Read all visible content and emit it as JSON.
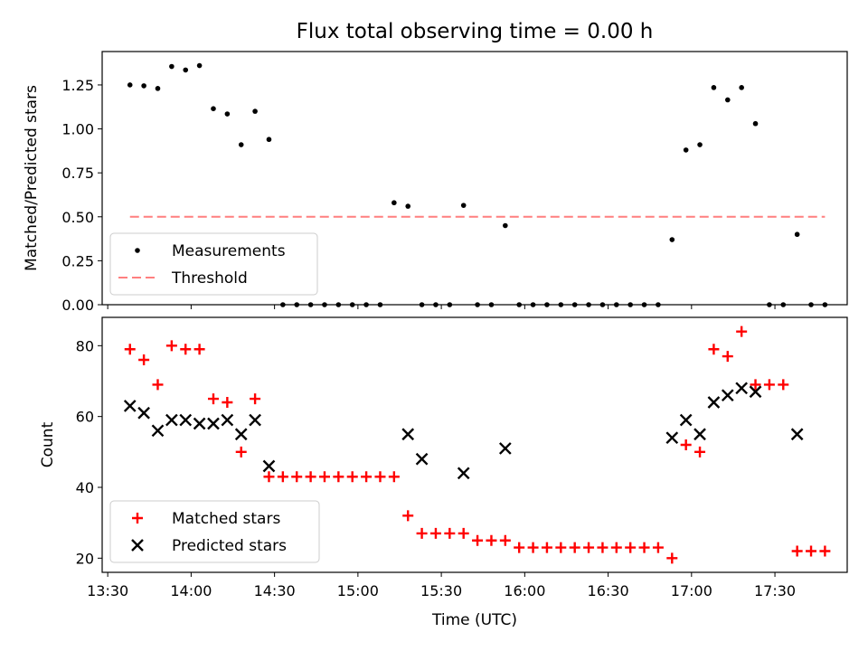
{
  "chart_data": [
    {
      "type": "scatter",
      "title": "Flux total observing time = 0.00 h",
      "xlabel": "",
      "ylabel": "Matched/Predicted stars",
      "xlim": [
        "13:28",
        "17:56"
      ],
      "ylim": [
        0,
        1.44
      ],
      "yticks": [
        "0.00",
        "0.25",
        "0.50",
        "0.75",
        "1.00",
        "1.25"
      ],
      "legend_position": "lower-left",
      "series": [
        {
          "name": "Measurements",
          "marker": "dot",
          "color": "#000000",
          "points": [
            [
              "13:38",
              1.25
            ],
            [
              "13:43",
              1.245
            ],
            [
              "13:48",
              1.23
            ],
            [
              "13:53",
              1.355
            ],
            [
              "13:58",
              1.335
            ],
            [
              "14:03",
              1.36
            ],
            [
              "14:08",
              1.115
            ],
            [
              "14:13",
              1.085
            ],
            [
              "14:18",
              0.91
            ],
            [
              "14:23",
              1.1
            ],
            [
              "14:28",
              0.94
            ],
            [
              "14:33",
              0
            ],
            [
              "14:38",
              0
            ],
            [
              "14:43",
              0
            ],
            [
              "14:48",
              0
            ],
            [
              "14:53",
              0
            ],
            [
              "14:58",
              0
            ],
            [
              "15:03",
              0
            ],
            [
              "15:08",
              0
            ],
            [
              "15:13",
              0.58
            ],
            [
              "15:18",
              0.56
            ],
            [
              "15:23",
              0
            ],
            [
              "15:28",
              0
            ],
            [
              "15:33",
              0
            ],
            [
              "15:38",
              0.565
            ],
            [
              "15:43",
              0
            ],
            [
              "15:48",
              0
            ],
            [
              "15:53",
              0.45
            ],
            [
              "15:58",
              0
            ],
            [
              "16:03",
              0
            ],
            [
              "16:08",
              0
            ],
            [
              "16:13",
              0
            ],
            [
              "16:18",
              0
            ],
            [
              "16:23",
              0
            ],
            [
              "16:28",
              0
            ],
            [
              "16:33",
              0
            ],
            [
              "16:38",
              0
            ],
            [
              "16:43",
              0
            ],
            [
              "16:48",
              0
            ],
            [
              "16:53",
              0.37
            ],
            [
              "16:58",
              0.88
            ],
            [
              "17:03",
              0.91
            ],
            [
              "17:08",
              1.235
            ],
            [
              "17:13",
              1.165
            ],
            [
              "17:18",
              1.235
            ],
            [
              "17:23",
              1.03
            ],
            [
              "17:28",
              0
            ],
            [
              "17:33",
              0
            ],
            [
              "17:38",
              0.4
            ],
            [
              "17:43",
              0
            ],
            [
              "17:48",
              0
            ]
          ]
        },
        {
          "name": "Threshold",
          "style": "dashed-line",
          "color": "#ff7f7f",
          "points": [
            [
              "13:38",
              0.5
            ],
            [
              "17:48",
              0.5
            ]
          ]
        }
      ]
    },
    {
      "type": "scatter",
      "title": "",
      "xlabel": "Time (UTC)",
      "ylabel": "Count",
      "xlim": [
        "13:28",
        "17:56"
      ],
      "ylim": [
        16,
        88
      ],
      "yticks": [
        "20",
        "40",
        "60",
        "80"
      ],
      "xticks": [
        "13:30",
        "14:00",
        "14:30",
        "15:00",
        "15:30",
        "16:00",
        "16:30",
        "17:00",
        "17:30"
      ],
      "legend_position": "lower-left",
      "series": [
        {
          "name": "Matched stars",
          "marker": "plus",
          "color": "#ff0000",
          "points": [
            [
              "13:38",
              79
            ],
            [
              "13:43",
              76
            ],
            [
              "13:48",
              69
            ],
            [
              "13:53",
              80
            ],
            [
              "13:58",
              79
            ],
            [
              "14:03",
              79
            ],
            [
              "14:08",
              65
            ],
            [
              "14:13",
              64
            ],
            [
              "14:18",
              50
            ],
            [
              "14:23",
              65
            ],
            [
              "14:28",
              43
            ],
            [
              "14:33",
              43
            ],
            [
              "14:38",
              43
            ],
            [
              "14:43",
              43
            ],
            [
              "14:48",
              43
            ],
            [
              "14:53",
              43
            ],
            [
              "14:58",
              43
            ],
            [
              "15:03",
              43
            ],
            [
              "15:08",
              43
            ],
            [
              "15:13",
              43
            ],
            [
              "15:18",
              32
            ],
            [
              "15:23",
              27
            ],
            [
              "15:28",
              27
            ],
            [
              "15:33",
              27
            ],
            [
              "15:38",
              27
            ],
            [
              "15:43",
              25
            ],
            [
              "15:48",
              25
            ],
            [
              "15:53",
              25
            ],
            [
              "15:58",
              23
            ],
            [
              "16:03",
              23
            ],
            [
              "16:08",
              23
            ],
            [
              "16:13",
              23
            ],
            [
              "16:18",
              23
            ],
            [
              "16:23",
              23
            ],
            [
              "16:28",
              23
            ],
            [
              "16:33",
              23
            ],
            [
              "16:38",
              23
            ],
            [
              "16:43",
              23
            ],
            [
              "16:48",
              23
            ],
            [
              "16:53",
              20
            ],
            [
              "16:58",
              52
            ],
            [
              "17:03",
              50
            ],
            [
              "17:08",
              79
            ],
            [
              "17:13",
              77
            ],
            [
              "17:18",
              84
            ],
            [
              "17:23",
              69
            ],
            [
              "17:28",
              69
            ],
            [
              "17:33",
              69
            ],
            [
              "17:38",
              22
            ],
            [
              "17:43",
              22
            ],
            [
              "17:48",
              22
            ]
          ]
        },
        {
          "name": "Predicted stars",
          "marker": "x",
          "color": "#000000",
          "points": [
            [
              "13:38",
              63
            ],
            [
              "13:43",
              61
            ],
            [
              "13:48",
              56
            ],
            [
              "13:53",
              59
            ],
            [
              "13:58",
              59
            ],
            [
              "14:03",
              58
            ],
            [
              "14:08",
              58
            ],
            [
              "14:13",
              59
            ],
            [
              "14:18",
              55
            ],
            [
              "14:23",
              59
            ],
            [
              "14:28",
              46
            ],
            [
              "15:18",
              55
            ],
            [
              "15:23",
              48
            ],
            [
              "15:38",
              44
            ],
            [
              "15:53",
              51
            ],
            [
              "16:53",
              54
            ],
            [
              "16:58",
              59
            ],
            [
              "17:03",
              55
            ],
            [
              "17:08",
              64
            ],
            [
              "17:13",
              66
            ],
            [
              "17:18",
              68
            ],
            [
              "17:23",
              67
            ],
            [
              "17:38",
              55
            ]
          ]
        }
      ]
    }
  ]
}
